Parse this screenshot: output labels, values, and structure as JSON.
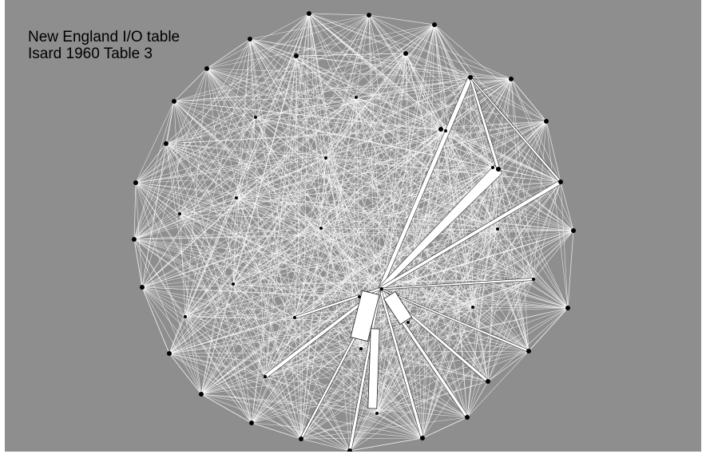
{
  "figure": {
    "title_line_1": "New England I/O table",
    "title_line_2": "Isard 1960 Table 3",
    "background_color": "#8e8e8e",
    "edge_color": "#ffffff",
    "node_color": "#000000",
    "layout": "circular network of sectors with flow edges; edge width proportional to flow; strongest flows radiate from a central hub"
  }
}
